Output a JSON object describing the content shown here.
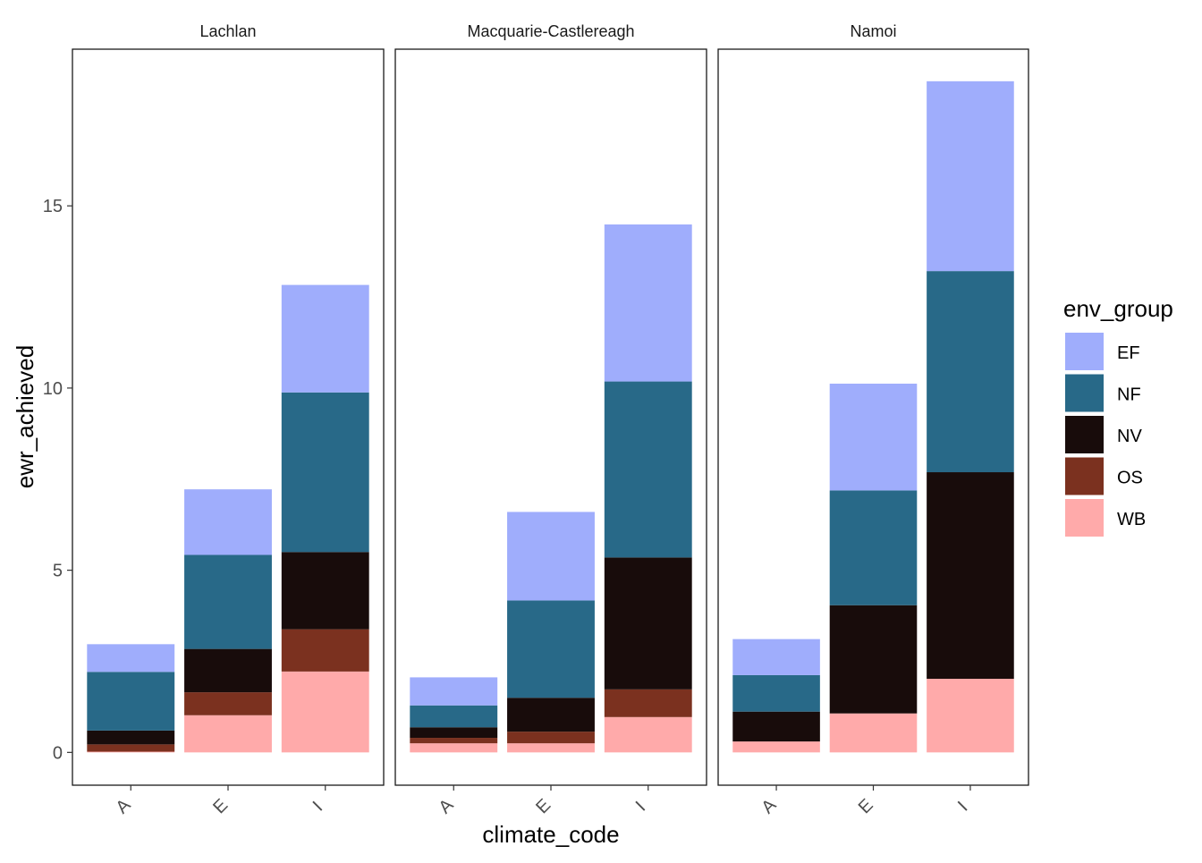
{
  "chart_data": {
    "type": "bar",
    "stacked": true,
    "xlabel": "climate_code",
    "ylabel": "ewr_achieved",
    "ylim": [
      -0.9,
      19.3
    ],
    "yticks": [
      0,
      5,
      10,
      15
    ],
    "categories": [
      "A",
      "E",
      "I"
    ],
    "facets": [
      "Lachlan",
      "Macquarie-Castlereagh",
      "Namoi"
    ],
    "legend": {
      "title": "env_group",
      "position": "right",
      "entries": [
        "EF",
        "NF",
        "NV",
        "OS",
        "WB"
      ]
    },
    "colors": {
      "EF": "#9fadfc",
      "NF": "#286988",
      "NV": "#180c0b",
      "OS": "#7b311f",
      "WB": "#ffaaaa"
    },
    "series": [
      {
        "name": "WB",
        "values": [
          [
            0.02,
            1.02,
            2.22
          ],
          [
            0.25,
            0.25,
            0.97
          ],
          [
            0.3,
            1.07,
            2.02
          ]
        ]
      },
      {
        "name": "OS",
        "values": [
          [
            0.2,
            0.63,
            1.16
          ],
          [
            0.15,
            0.32,
            0.76
          ],
          [
            0.0,
            0.0,
            0.0
          ]
        ]
      },
      {
        "name": "NV",
        "values": [
          [
            0.38,
            1.19,
            2.12
          ],
          [
            0.29,
            0.93,
            3.62
          ],
          [
            0.82,
            2.97,
            5.67
          ]
        ]
      },
      {
        "name": "NF",
        "values": [
          [
            1.61,
            2.58,
            4.38
          ],
          [
            0.6,
            2.67,
            4.83
          ],
          [
            1.0,
            3.15,
            5.52
          ]
        ]
      },
      {
        "name": "EF",
        "values": [
          [
            0.76,
            1.8,
            2.95
          ],
          [
            0.77,
            2.43,
            4.31
          ],
          [
            0.99,
            2.93,
            5.21
          ]
        ]
      }
    ]
  }
}
